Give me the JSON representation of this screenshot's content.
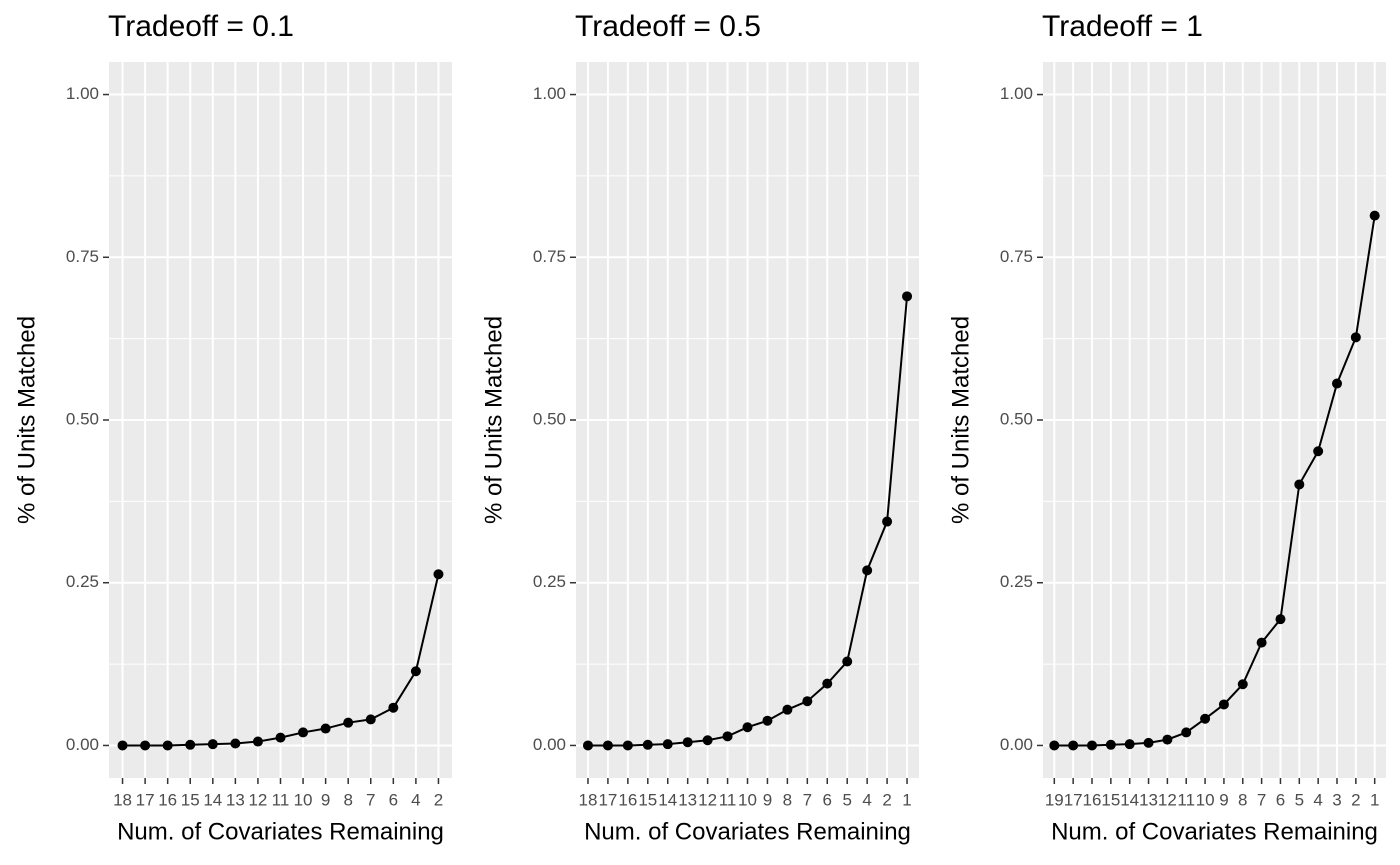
{
  "chart_data": [
    {
      "type": "line",
      "title": "Tradeoff = 0.1",
      "x_label": "Num. of Covariates Remaining",
      "y_label": "% of Units Matched",
      "categories": [
        "18",
        "17",
        "16",
        "15",
        "14",
        "13",
        "12",
        "11",
        "10",
        "9",
        "8",
        "7",
        "6",
        "4",
        "2"
      ],
      "values": [
        0,
        0,
        0,
        0.001,
        0.002,
        0.003,
        0.006,
        0.012,
        0.02,
        0.026,
        0.035,
        0.04,
        0.058,
        0.114,
        0.263
      ],
      "color": "#000000",
      "ylim": [
        -0.05,
        1.05
      ],
      "yticks": [
        {
          "value": 0,
          "label": "0.00"
        },
        {
          "value": 0.25,
          "label": "0.25"
        },
        {
          "value": 0.5,
          "label": "0.50"
        },
        {
          "value": 0.75,
          "label": "0.75"
        },
        {
          "value": 1,
          "label": "1.00"
        }
      ],
      "grid": true
    },
    {
      "type": "line",
      "title": "Tradeoff = 0.5",
      "x_label": "Num. of Covariates Remaining",
      "y_label": "% of Units Matched",
      "categories": [
        "18",
        "17",
        "16",
        "15",
        "14",
        "13",
        "12",
        "11",
        "10",
        "9",
        "8",
        "7",
        "6",
        "5",
        "4",
        "2",
        "1"
      ],
      "values": [
        0,
        0,
        0,
        0.001,
        0.002,
        0.005,
        0.008,
        0.014,
        0.028,
        0.038,
        0.055,
        0.068,
        0.095,
        0.129,
        0.269,
        0.344,
        0.69
      ],
      "color": "#000000",
      "ylim": [
        -0.05,
        1.05
      ],
      "yticks": [
        {
          "value": 0,
          "label": "0.00"
        },
        {
          "value": 0.25,
          "label": "0.25"
        },
        {
          "value": 0.5,
          "label": "0.50"
        },
        {
          "value": 0.75,
          "label": "0.75"
        },
        {
          "value": 1,
          "label": "1.00"
        }
      ],
      "grid": true
    },
    {
      "type": "line",
      "title": "Tradeoff = 1",
      "x_label": "Num. of Covariates Remaining",
      "y_label": "% of Units Matched",
      "categories": [
        "19",
        "17",
        "16",
        "15",
        "14",
        "13",
        "12",
        "11",
        "10",
        "9",
        "8",
        "7",
        "6",
        "5",
        "4",
        "3",
        "2",
        "1"
      ],
      "values": [
        0,
        0,
        0,
        0.001,
        0.002,
        0.004,
        0.009,
        0.02,
        0.041,
        0.063,
        0.094,
        0.158,
        0.194,
        0.401,
        0.452,
        0.556,
        0.627,
        0.814
      ],
      "color": "#000000",
      "ylim": [
        -0.05,
        1.05
      ],
      "yticks": [
        {
          "value": 0,
          "label": "0.00"
        },
        {
          "value": 0.25,
          "label": "0.25"
        },
        {
          "value": 0.5,
          "label": "0.50"
        },
        {
          "value": 0.75,
          "label": "0.75"
        },
        {
          "value": 1,
          "label": "1.00"
        }
      ],
      "grid": true
    }
  ]
}
